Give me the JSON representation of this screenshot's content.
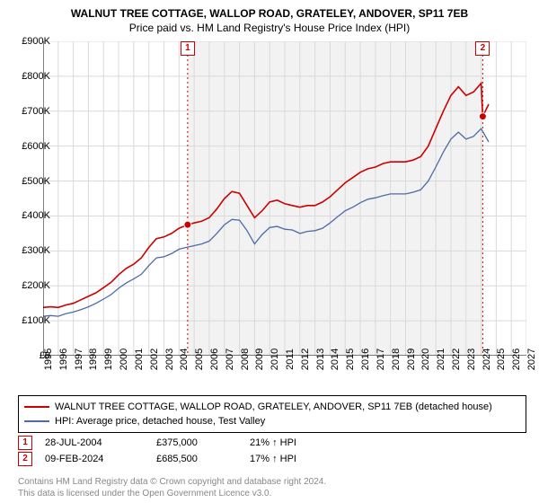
{
  "title": "WALNUT TREE COTTAGE, WALLOP ROAD, GRATELEY, ANDOVER, SP11 7EB",
  "subtitle": "Price paid vs. HM Land Registry's House Price Index (HPI)",
  "chart": {
    "type": "line",
    "background_color": "#ffffff",
    "grid_color": "#d9d9d9",
    "axis_color": "#000000",
    "shade_color": "#f2f2f2",
    "shade_year_from": 2004.57,
    "shade_year_to": 2024.11,
    "label_fontsize": 11,
    "title_fontsize": 12,
    "x": {
      "min": 1995,
      "max": 2027,
      "ticks": [
        1995,
        1996,
        1997,
        1998,
        1999,
        2000,
        2001,
        2002,
        2003,
        2004,
        2005,
        2006,
        2007,
        2008,
        2009,
        2010,
        2011,
        2012,
        2013,
        2014,
        2015,
        2016,
        2017,
        2018,
        2019,
        2020,
        2021,
        2022,
        2023,
        2024,
        2025,
        2026,
        2027
      ]
    },
    "y": {
      "min": 0,
      "max": 900,
      "ticks": [
        0,
        100,
        200,
        300,
        400,
        500,
        600,
        700,
        800,
        900
      ],
      "tick_labels": [
        "£0",
        "£100K",
        "£200K",
        "£300K",
        "£400K",
        "£500K",
        "£600K",
        "£700K",
        "£800K",
        "£900K"
      ]
    },
    "series": [
      {
        "name": "WALNUT TREE COTTAGE, WALLOP ROAD, GRATELEY, ANDOVER, SP11 7EB (detached house)",
        "color": "#cc0000",
        "width": 1.6,
        "x": [
          1995.0,
          1995.5,
          1996.0,
          1996.5,
          1997.0,
          1997.5,
          1998.0,
          1998.5,
          1999.0,
          1999.5,
          2000.0,
          2000.5,
          2001.0,
          2001.5,
          2002.0,
          2002.5,
          2003.0,
          2003.5,
          2004.0,
          2004.57,
          2005.0,
          2005.5,
          2006.0,
          2006.5,
          2007.0,
          2007.5,
          2008.0,
          2008.5,
          2009.0,
          2009.5,
          2010.0,
          2010.5,
          2011.0,
          2011.5,
          2012.0,
          2012.5,
          2013.0,
          2013.5,
          2014.0,
          2014.5,
          2015.0,
          2015.5,
          2016.0,
          2016.5,
          2017.0,
          2017.5,
          2018.0,
          2018.5,
          2019.0,
          2019.5,
          2020.0,
          2020.5,
          2021.0,
          2021.5,
          2022.0,
          2022.5,
          2023.0,
          2023.5,
          2024.0,
          2024.11,
          2024.5
        ],
        "y": [
          138,
          140,
          138,
          145,
          150,
          160,
          170,
          180,
          195,
          210,
          232,
          250,
          262,
          280,
          310,
          335,
          340,
          350,
          365,
          375,
          380,
          385,
          395,
          420,
          450,
          470,
          465,
          430,
          395,
          415,
          440,
          445,
          435,
          430,
          425,
          430,
          430,
          440,
          455,
          475,
          495,
          510,
          525,
          535,
          540,
          550,
          555,
          555,
          555,
          560,
          570,
          600,
          650,
          700,
          745,
          770,
          745,
          755,
          780,
          685,
          720
        ]
      },
      {
        "name": "HPI: Average price, detached house, Test Valley",
        "color": "#4e6aa8",
        "width": 1.3,
        "x": [
          1995.0,
          1995.5,
          1996.0,
          1996.5,
          1997.0,
          1997.5,
          1998.0,
          1998.5,
          1999.0,
          1999.5,
          2000.0,
          2000.5,
          2001.0,
          2001.5,
          2002.0,
          2002.5,
          2003.0,
          2003.5,
          2004.0,
          2004.5,
          2005.0,
          2005.5,
          2006.0,
          2006.5,
          2007.0,
          2007.5,
          2008.0,
          2008.5,
          2009.0,
          2009.5,
          2010.0,
          2010.5,
          2011.0,
          2011.5,
          2012.0,
          2012.5,
          2013.0,
          2013.5,
          2014.0,
          2014.5,
          2015.0,
          2015.5,
          2016.0,
          2016.5,
          2017.0,
          2017.5,
          2018.0,
          2018.5,
          2019.0,
          2019.5,
          2020.0,
          2020.5,
          2021.0,
          2021.5,
          2022.0,
          2022.5,
          2023.0,
          2023.5,
          2024.0,
          2024.5
        ],
        "y": [
          113,
          115,
          113,
          120,
          125,
          132,
          140,
          150,
          162,
          175,
          193,
          208,
          220,
          233,
          258,
          280,
          283,
          292,
          305,
          310,
          315,
          320,
          328,
          350,
          375,
          390,
          388,
          358,
          320,
          347,
          367,
          370,
          362,
          360,
          350,
          356,
          358,
          365,
          380,
          398,
          415,
          425,
          438,
          448,
          452,
          458,
          463,
          463,
          463,
          468,
          475,
          500,
          540,
          583,
          620,
          640,
          620,
          628,
          650,
          612
        ]
      }
    ],
    "markers": [
      {
        "n": "1",
        "year": 2004.57,
        "value": 375
      },
      {
        "n": "2",
        "year": 2024.11,
        "value": 685
      }
    ]
  },
  "legend": {
    "items": [
      {
        "color": "#cc0000",
        "label": "WALNUT TREE COTTAGE, WALLOP ROAD, GRATELEY, ANDOVER, SP11 7EB (detached house)"
      },
      {
        "color": "#4e6aa8",
        "label": "HPI: Average price, detached house, Test Valley"
      }
    ]
  },
  "sales": [
    {
      "n": "1",
      "date": "28-JUL-2004",
      "price": "£375,000",
      "delta": "21% ↑ HPI"
    },
    {
      "n": "2",
      "date": "09-FEB-2024",
      "price": "£685,500",
      "delta": "17% ↑ HPI"
    }
  ],
  "footer": {
    "line1": "Contains HM Land Registry data © Crown copyright and database right 2024.",
    "line2": "This data is licensed under the Open Government Licence v3.0."
  }
}
